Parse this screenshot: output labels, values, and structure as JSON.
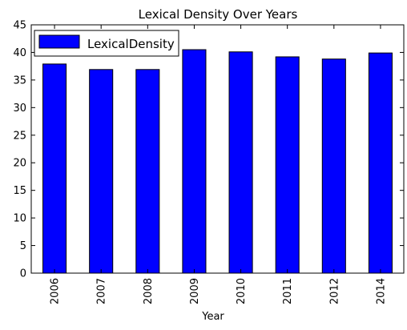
{
  "chart_data": {
    "type": "bar",
    "title": "Lexical Density Over Years",
    "xlabel": "Year",
    "ylabel": "",
    "categories": [
      "2006",
      "2007",
      "2008",
      "2009",
      "2010",
      "2011",
      "2012",
      "2014"
    ],
    "series": [
      {
        "name": "LexicalDensity",
        "values": [
          37.9,
          36.9,
          36.9,
          40.5,
          40.1,
          39.2,
          38.8,
          39.9
        ],
        "color": "#0000ff"
      }
    ],
    "ylim": [
      0,
      45
    ],
    "yticks": [
      0,
      5,
      10,
      15,
      20,
      25,
      30,
      35,
      40,
      45
    ],
    "legend_position": "top-left",
    "grid": false
  }
}
